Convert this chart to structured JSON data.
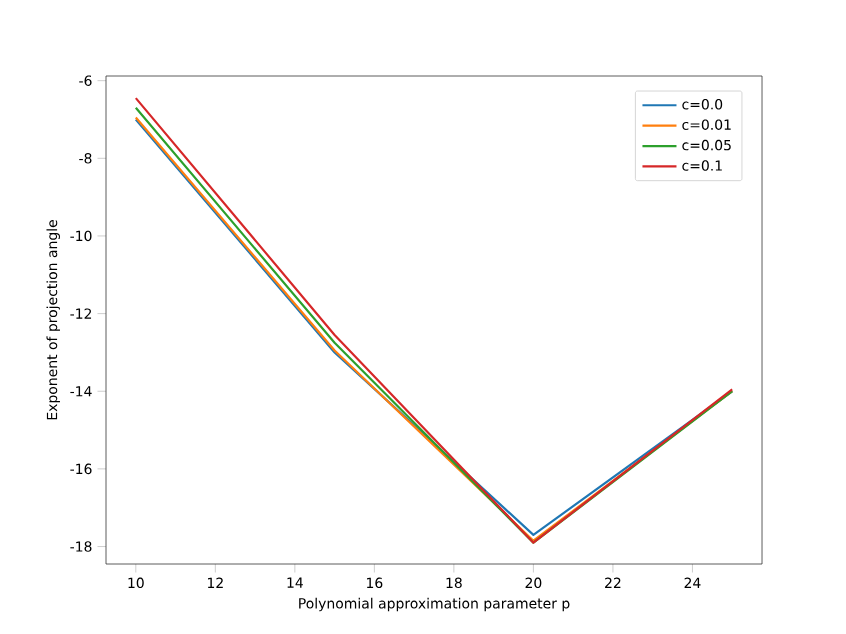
{
  "chart_data": {
    "type": "line",
    "xlabel": "Polynomial approximation parameter p",
    "ylabel": "Exponent of projection angle",
    "x": [
      10,
      15,
      20,
      25
    ],
    "series": [
      {
        "name": "c=0.0",
        "color": "#1f77b4",
        "values": [
          -7.0,
          -13.0,
          -17.7,
          -14.0
        ]
      },
      {
        "name": "c=0.01",
        "color": "#ff7f0e",
        "values": [
          -6.95,
          -12.95,
          -17.85,
          -14.0
        ]
      },
      {
        "name": "c=0.05",
        "color": "#2ca02c",
        "values": [
          -6.7,
          -12.75,
          -17.9,
          -14.0
        ]
      },
      {
        "name": "c=0.1",
        "color": "#d62728",
        "values": [
          -6.45,
          -12.55,
          -17.9,
          -13.95
        ]
      }
    ],
    "xlim": [
      9.25,
      25.75
    ],
    "ylim": [
      -18.45,
      -5.88
    ],
    "xticks": [
      10,
      12,
      14,
      16,
      18,
      20,
      22,
      24
    ],
    "yticks": [
      -18,
      -16,
      -14,
      -12,
      -10,
      -8,
      -6
    ],
    "grid": false,
    "legend": "top right",
    "marker": "none",
    "line_style": "solid"
  }
}
